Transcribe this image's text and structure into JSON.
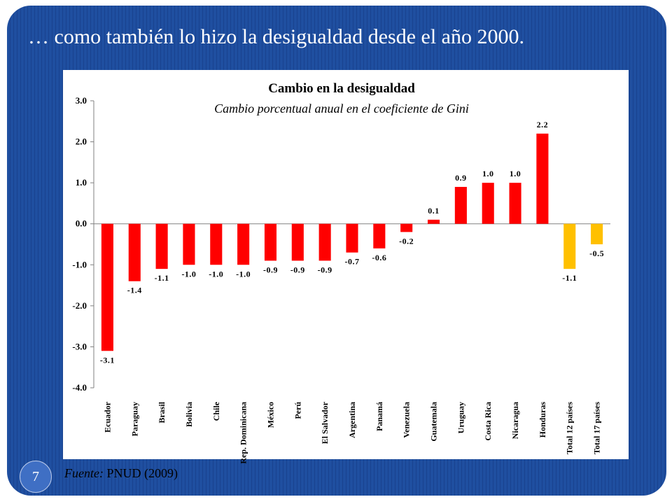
{
  "slide": {
    "title": "… como también lo hizo la desigualdad desde el año 2000.",
    "slide_number": "7",
    "source_label": "Fuente:",
    "source_text": "PNUD (2009)"
  },
  "colors": {
    "slide_background": "#1f4fa0",
    "chart_background": "#ffffff",
    "country_bar": "#ff0000",
    "total_bar": "#ffc000"
  },
  "chart_data": {
    "type": "bar",
    "title": "Cambio en la desigualdad",
    "subtitle": "Cambio porcentual anual en el coeficiente de Gini",
    "ylim": [
      -4.0,
      3.0
    ],
    "yticks": [
      "3.0",
      "2.0",
      "1.0",
      "0.0",
      "-1.0",
      "-2.0",
      "-3.0",
      "-4.0"
    ],
    "grid": false,
    "categories": [
      "Ecuador",
      "Paraguay",
      "Brasil",
      "Bolivia",
      "Chile",
      "Rep. Dominicana",
      "México",
      "Perú",
      "El Salvador",
      "Argentina",
      "Panamá",
      "Venezuela",
      "Guatemala",
      "Uruguay",
      "Costa Rica",
      "Nicaragua",
      "Honduras",
      "Total 12 países",
      "Total 17 países"
    ],
    "values": [
      -3.1,
      -1.4,
      -1.1,
      -1.0,
      -1.0,
      -1.0,
      -0.9,
      -0.9,
      -0.9,
      -0.7,
      -0.6,
      -0.2,
      0.1,
      0.9,
      1.0,
      1.0,
      2.2,
      -1.1,
      -0.5
    ],
    "data_labels": [
      "-3.1",
      "-1.4",
      "-1.1",
      "-1.0",
      "-1.0",
      "-1.0",
      "-0.9",
      "-0.9",
      "-0.9",
      "-0.7",
      "-0.6",
      "-0.2",
      "0.1",
      "0.9",
      "1.0",
      "1.0",
      "2.2",
      "-1.1",
      "-0.5"
    ],
    "bar_colors": [
      "#ff0000",
      "#ff0000",
      "#ff0000",
      "#ff0000",
      "#ff0000",
      "#ff0000",
      "#ff0000",
      "#ff0000",
      "#ff0000",
      "#ff0000",
      "#ff0000",
      "#ff0000",
      "#ff0000",
      "#ff0000",
      "#ff0000",
      "#ff0000",
      "#ff0000",
      "#ffc000",
      "#ffc000"
    ]
  }
}
